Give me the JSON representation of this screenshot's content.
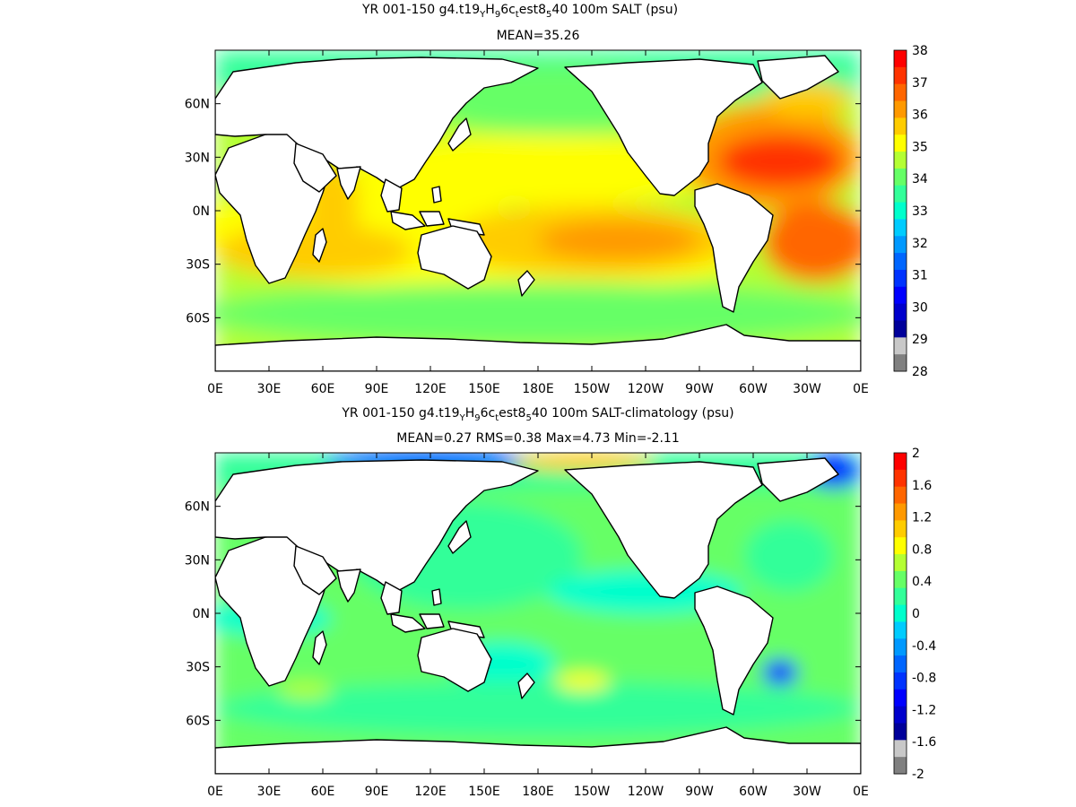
{
  "panels": [
    {
      "title_parts": [
        "YR 001-150 g4.t19",
        "Y",
        "H",
        "9",
        "6c",
        "t",
        "est8",
        "5",
        "40 100m SALT (psu)"
      ],
      "subtitle": "MEAN=35.26",
      "colorbar": {
        "labels": [
          "38",
          "37",
          "36",
          "35",
          "34",
          "33",
          "32",
          "31",
          "30",
          "29",
          "28"
        ],
        "colors": [
          "#ff0000",
          "#ff3300",
          "#ff6600",
          "#ff9900",
          "#ffcc00",
          "#ffff00",
          "#b4ff33",
          "#66ff66",
          "#33ff99",
          "#00ffcc",
          "#00ccff",
          "#0099ff",
          "#0066ff",
          "#0033ff",
          "#0000ff",
          "#0000cc",
          "#00009a",
          "#c8c8c8",
          "#808080"
        ]
      }
    },
    {
      "title_parts": [
        "YR 001-150 g4.t19",
        "Y",
        "H",
        "9",
        "6c",
        "t",
        "est8",
        "5",
        "40 100m SALT-climatology (psu)"
      ],
      "subtitle": "MEAN=0.27   RMS=0.38   Max=4.73   Min=-2.11",
      "colorbar": {
        "labels": [
          "2",
          "1.6",
          "1.2",
          "0.8",
          "0.4",
          "0",
          "-0.4",
          "-0.8",
          "-1.2",
          "-1.6",
          "-2"
        ],
        "colors": [
          "#ff0000",
          "#ff3300",
          "#ff6600",
          "#ff9900",
          "#ffcc00",
          "#ffff00",
          "#b4ff33",
          "#66ff66",
          "#33ff99",
          "#00ffcc",
          "#00ccff",
          "#0099ff",
          "#0066ff",
          "#0033ff",
          "#0000ff",
          "#0000cc",
          "#00009a",
          "#c8c8c8",
          "#808080"
        ]
      }
    }
  ],
  "map": {
    "lon_labels": [
      "0E",
      "30E",
      "60E",
      "90E",
      "120E",
      "150E",
      "180E",
      "150W",
      "120W",
      "90W",
      "60W",
      "30W",
      "0E"
    ],
    "lat_labels": [
      "60N",
      "30N",
      "0N",
      "30S",
      "60S"
    ]
  },
  "colors": {
    "land": "#ffffff",
    "coast": "#000000"
  }
}
